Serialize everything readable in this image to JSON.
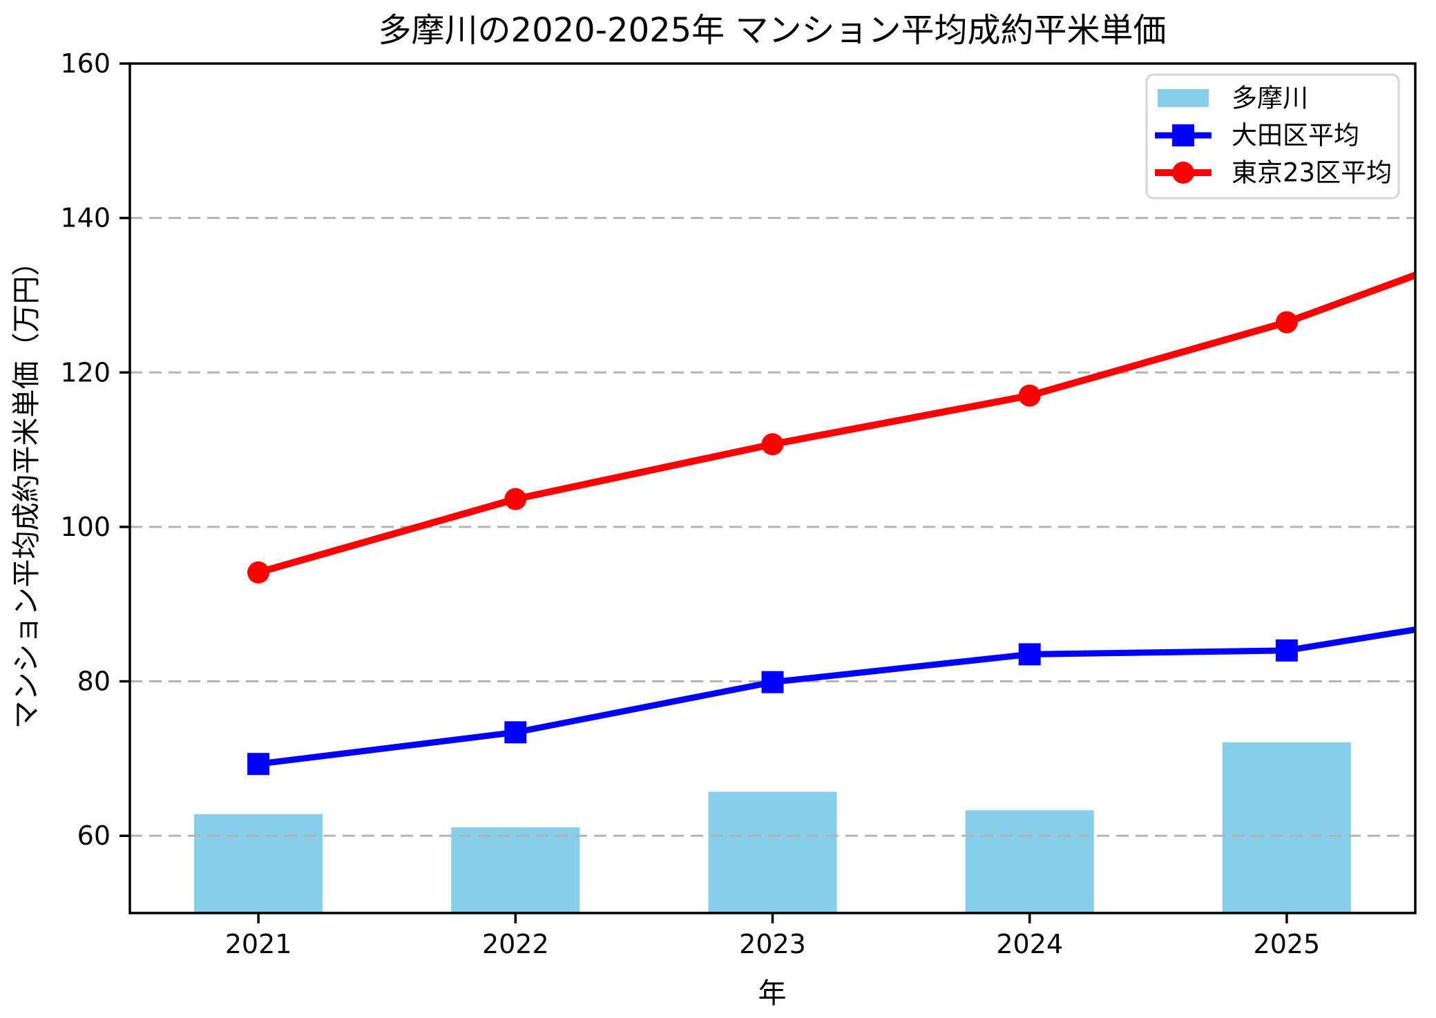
{
  "chart_data": {
    "type": "bar+line combo",
    "title": "多摩川の2020-2025年 マンション平均成約平米単価",
    "xlabel": "年",
    "ylabel": "マンション平均成約平米単価（万円）",
    "categories": [
      2021,
      2022,
      2023,
      2024,
      2025
    ],
    "series": [
      {
        "name": "多摩川",
        "type": "bar",
        "color": "#87CEEB",
        "bar_width_years": 0.5,
        "values": [
          62.8,
          61.1,
          65.7,
          63.3,
          72.1
        ]
      },
      {
        "name": "大田区平均",
        "type": "line",
        "marker": "square",
        "color": "#0000FF",
        "line_width": 9,
        "values": [
          69.3,
          73.4,
          79.9,
          83.5,
          84.0
        ],
        "extends_to": {
          "x": 2025.5,
          "value": 86.7
        }
      },
      {
        "name": "東京23区平均",
        "type": "line",
        "marker": "circle",
        "color": "#FF0000",
        "line_width": 10,
        "values": [
          94.1,
          103.6,
          110.7,
          117.0,
          126.5
        ],
        "extends_to": {
          "x": 2025.5,
          "value": 132.6
        }
      }
    ],
    "xlim": [
      2020.5,
      2025.5
    ],
    "ylim": [
      50,
      160
    ],
    "yticks": [
      60,
      80,
      100,
      120,
      140,
      160
    ],
    "grid": {
      "axis": "y",
      "style": "dashed",
      "color": "#b3b3b3",
      "above_bars": true,
      "below_lines": true
    },
    "legend": {
      "position": "upper right",
      "items": [
        "多摩川",
        "大田区平均",
        "東京23区平均"
      ]
    }
  }
}
